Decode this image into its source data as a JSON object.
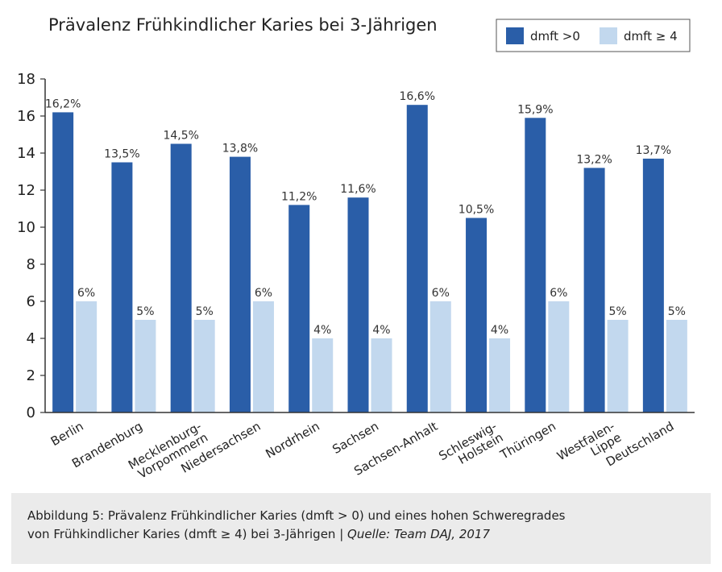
{
  "chart_data": {
    "type": "bar",
    "title": "Prävalenz Frühkindlicher Karies bei 3-Jährigen",
    "categories": [
      [
        "Berlin"
      ],
      [
        "Brandenburg"
      ],
      [
        "Mecklenburg-",
        "Vorpommern"
      ],
      [
        "Niedersachsen"
      ],
      [
        "Nordrhein"
      ],
      [
        "Sachsen"
      ],
      [
        "Sachsen-Anhalt"
      ],
      [
        "Schleswig-",
        "Holstein"
      ],
      [
        "Thüringen"
      ],
      [
        "Westfalen-",
        "Lippe"
      ],
      [
        "Deutschland"
      ]
    ],
    "series": [
      {
        "name": "dmft >0",
        "color": "#2a5ea8",
        "values": [
          16.2,
          13.5,
          14.5,
          13.8,
          11.2,
          11.6,
          16.6,
          10.5,
          15.9,
          13.2,
          13.7
        ],
        "labels": [
          "16,2%",
          "13,5%",
          "14,5%",
          "13,8%",
          "11,2%",
          "11,6%",
          "16,6%",
          "10,5%",
          "15,9%",
          "13,2%",
          "13,7%"
        ]
      },
      {
        "name": "dmft ≥ 4",
        "color": "#c2d8ee",
        "values": [
          6,
          5,
          5,
          6,
          4,
          4,
          6,
          4,
          6,
          5,
          5
        ],
        "labels": [
          "6%",
          "5%",
          "5%",
          "6%",
          "4%",
          "4%",
          "6%",
          "4%",
          "6%",
          "5%",
          "5%"
        ]
      }
    ],
    "ylim": [
      0,
      18
    ],
    "yticks": [
      0,
      2,
      4,
      6,
      8,
      10,
      12,
      14,
      16,
      18
    ],
    "grid": false,
    "legend_position": "top-right",
    "xlabel": "",
    "ylabel": ""
  },
  "caption": {
    "line1": "Abbildung 5: Prävalenz Frühkindlicher Karies (dmft > 0) und eines hohen Schweregrades",
    "line2": "von Frühkindlicher Karies (dmft ≥ 4) bei 3-Jährigen | ",
    "source": "Quelle: Team DAJ, 2017"
  }
}
